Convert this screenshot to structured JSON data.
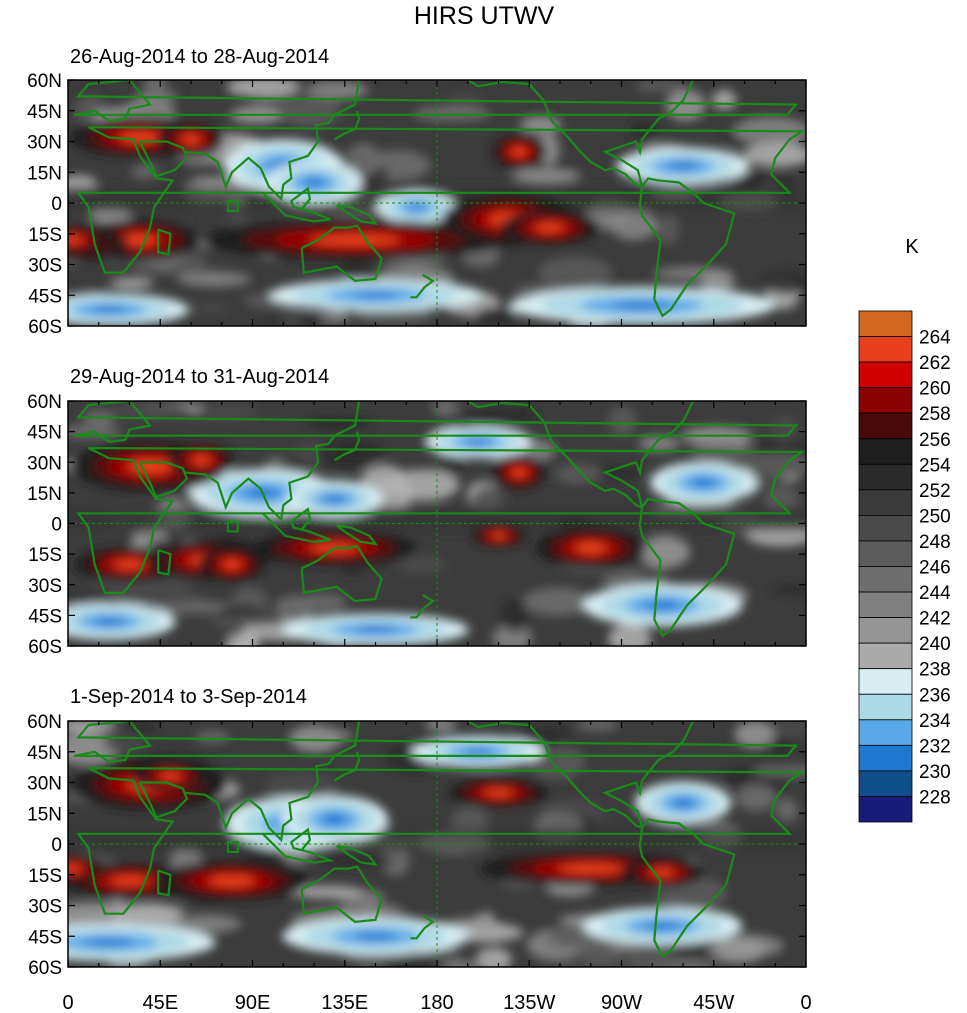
{
  "title": "HIRS UTWV",
  "panels": [
    {
      "subtitle": "26-Aug-2014 to 28-Aug-2014"
    },
    {
      "subtitle": "29-Aug-2014 to 31-Aug-2014"
    },
    {
      "subtitle": "1-Sep-2014 to 3-Sep-2014"
    }
  ],
  "lat_labels": [
    "60N",
    "45N",
    "30N",
    "15N",
    "0",
    "15S",
    "30S",
    "45S",
    "60S"
  ],
  "lon_labels": [
    "0",
    "45E",
    "90E",
    "135E",
    "180",
    "135W",
    "90W",
    "45W",
    "0"
  ],
  "colorbar": {
    "unit": "K",
    "labels": [
      "264",
      "262",
      "260",
      "258",
      "256",
      "254",
      "252",
      "250",
      "248",
      "246",
      "244",
      "242",
      "240",
      "238",
      "236",
      "234",
      "232",
      "230",
      "228"
    ],
    "colors_top_to_bottom": [
      "#d2691e",
      "#e8401e",
      "#d00000",
      "#8b0000",
      "#4a0a0a",
      "#1e1e1e",
      "#2a2a2a",
      "#3a3a3a",
      "#4a4a4a",
      "#5c5c5c",
      "#6e6e6e",
      "#808080",
      "#959595",
      "#ababab",
      "#d8eef2",
      "#add8e6",
      "#5ba8e8",
      "#1e78d0",
      "#104e8b",
      "#1a1a7a"
    ]
  },
  "coastline_color": "#1a8a1a"
}
